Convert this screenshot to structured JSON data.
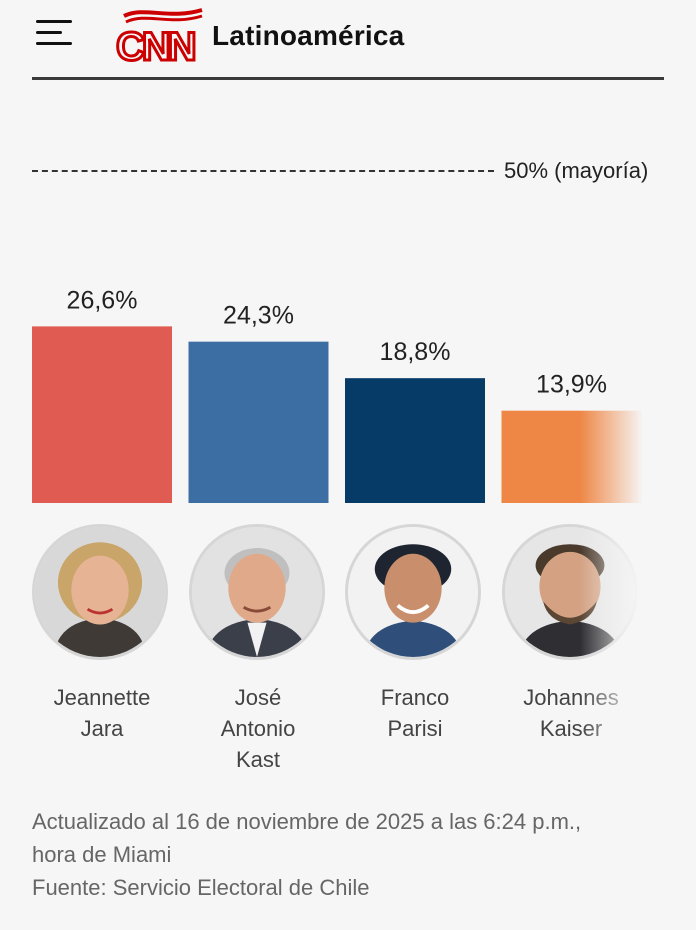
{
  "header": {
    "menu_icon": "hamburger-menu-icon",
    "logo_text": "CNN",
    "edition": "Latinoamérica",
    "brand_color": "#cc0000"
  },
  "chart_data": {
    "type": "bar",
    "categories": [
      "Jeannette Jara",
      "José Antonio Kast",
      "Franco Parisi",
      "Johannes Kaiser"
    ],
    "values": [
      26.6,
      24.3,
      18.8,
      13.9
    ],
    "value_labels": [
      "26,6%",
      "24,3%",
      "18,8%",
      "13,9%"
    ],
    "colors": [
      "#e05c52",
      "#3d6ea3",
      "#063b68",
      "#ee8746"
    ],
    "unit": "%",
    "ylim": [
      0,
      50
    ],
    "reference_line": {
      "value": 50,
      "label": "50% (mayoría)"
    },
    "grid": false
  },
  "candidates": [
    {
      "name_lines": [
        "Jeannette",
        "Jara"
      ]
    },
    {
      "name_lines": [
        "José",
        "Antonio",
        "Kast"
      ]
    },
    {
      "name_lines": [
        "Franco",
        "Parisi"
      ]
    },
    {
      "name_lines": [
        "Johannes",
        "Kaiser"
      ]
    }
  ],
  "footer": {
    "updated_line1": "Actualizado al 16 de noviembre de 2025 a las 6:24 p.m.,",
    "updated_line2": "hora de Miami",
    "source": "Fuente: Servicio Electoral de Chile"
  }
}
